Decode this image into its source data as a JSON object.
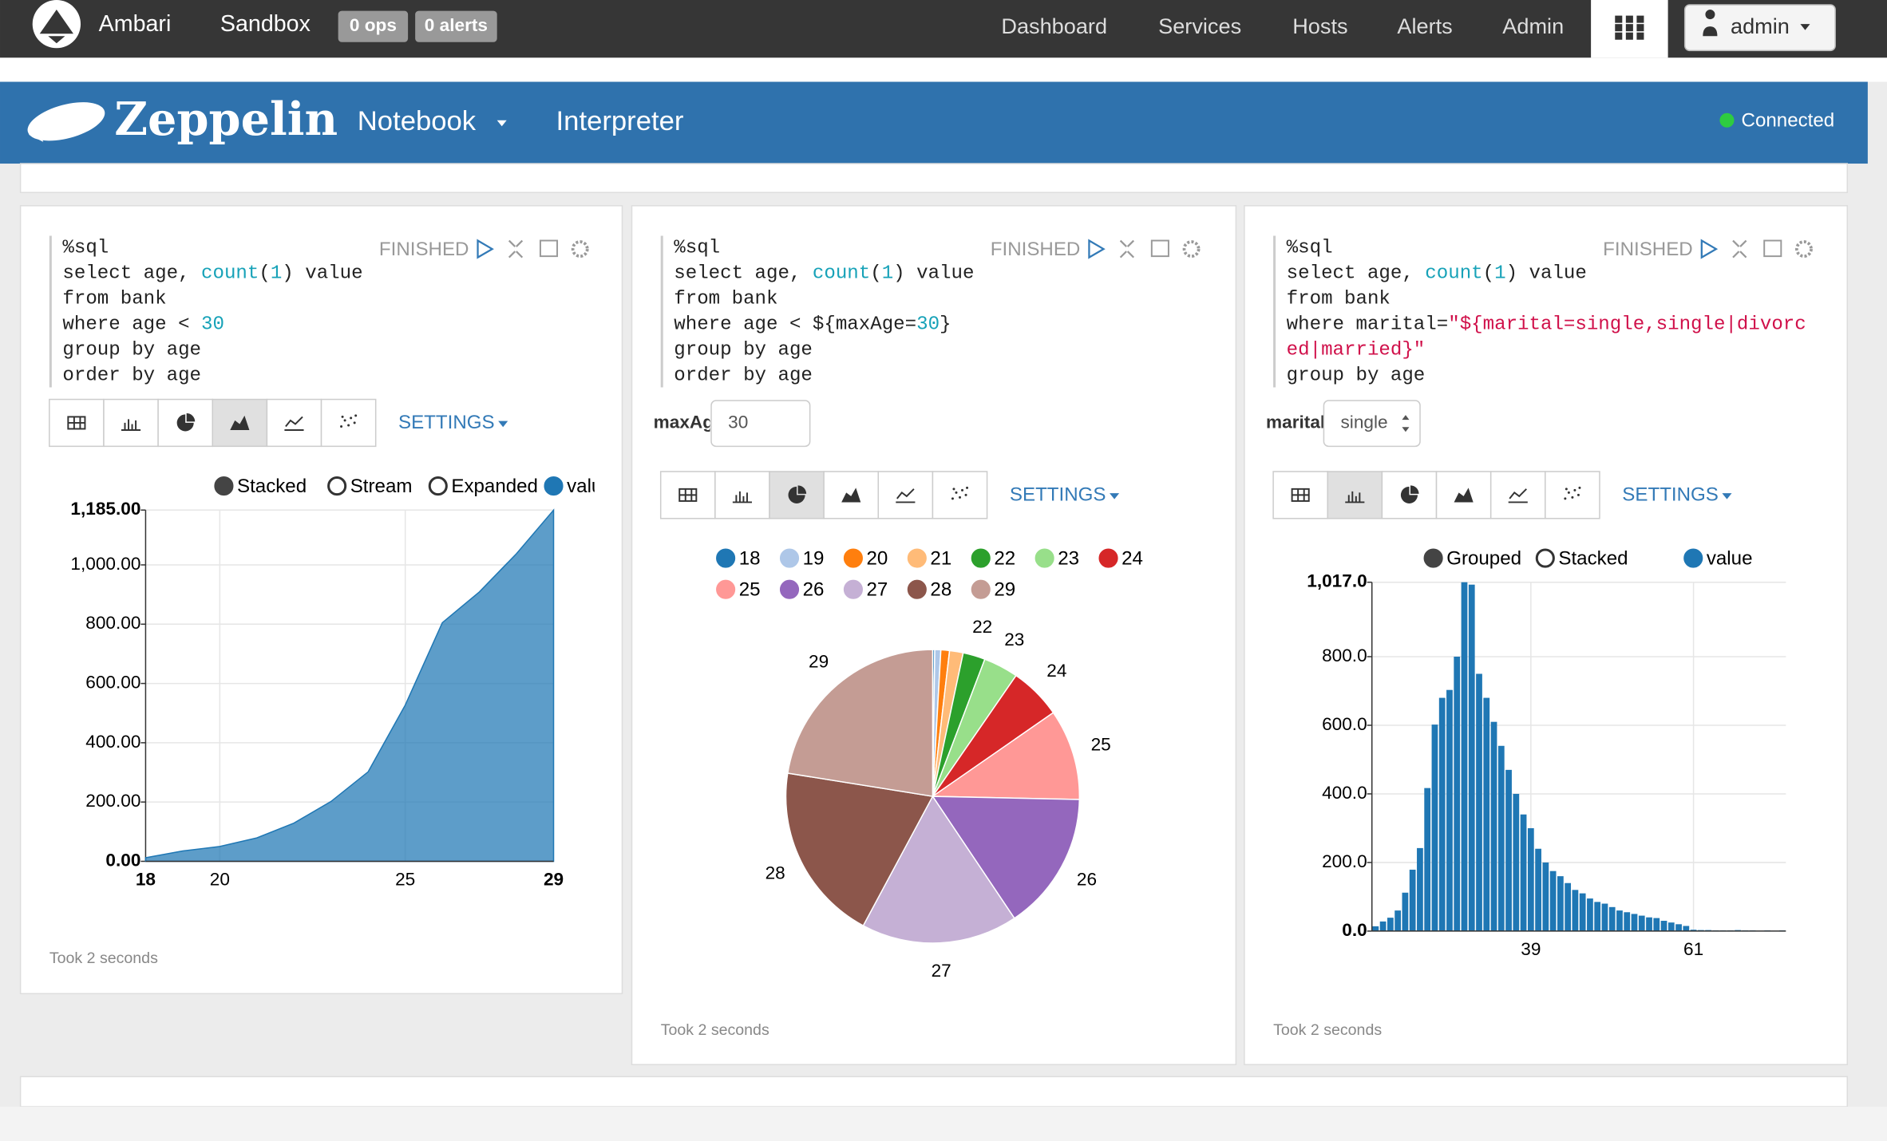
{
  "ambari": {
    "brand": "Ambari",
    "cluster": "Sandbox",
    "ops": "0 ops",
    "alerts": "0 alerts",
    "menu": [
      "Dashboard",
      "Services",
      "Hosts",
      "Alerts",
      "Admin"
    ],
    "user": "admin"
  },
  "zeppelin": {
    "brand": "Zeppelin",
    "menu": [
      "Notebook",
      "Interpreter"
    ],
    "status": "Connected"
  },
  "paragraphs": [
    {
      "code": [
        "%sql",
        "select age, count(1) value",
        "from bank",
        "where age < 30",
        "group by age",
        "order by age"
      ],
      "status": "FINISHED",
      "settings": "SETTINGS",
      "footer": "Took 2 seconds"
    },
    {
      "code": [
        "%sql",
        "select age, count(1) value",
        "from bank",
        "where age < ${maxAge=30}",
        "group by age",
        "order by age"
      ],
      "status": "FINISHED",
      "settings": "SETTINGS",
      "footer": "Took 2 seconds",
      "param": {
        "label": "maxAge",
        "value": "30"
      }
    },
    {
      "code": [
        "%sql",
        "select age, count(1) value",
        "from bank",
        "where marital=\"${marital=single,single|divorc",
        "ed|married}\"",
        "group by age"
      ],
      "status": "FINISHED",
      "settings": "SETTINGS",
      "footer": "Took 2 seconds",
      "param": {
        "label": "marital",
        "value": "single"
      }
    }
  ],
  "chart_data": [
    {
      "type": "area",
      "x": [
        18,
        19,
        20,
        21,
        22,
        23,
        24,
        25,
        26,
        27,
        28,
        29
      ],
      "series": [
        {
          "name": "value",
          "color": "#1f77b4",
          "values": [
            12,
            35,
            50,
            79,
            129,
            202,
            302,
            527,
            805,
            909,
            1038,
            1185
          ]
        }
      ],
      "legend_options": [
        "Stacked",
        "Stream",
        "Expanded"
      ],
      "xlim": [
        18,
        29
      ],
      "xticks": [
        18,
        20,
        25,
        29
      ],
      "ylim": [
        0,
        1185
      ],
      "yticks": [
        {
          "value": 0,
          "label": "0.00"
        },
        {
          "value": 200,
          "label": "200.00"
        },
        {
          "value": 400,
          "label": "400.00"
        },
        {
          "value": 600,
          "label": "600.00"
        },
        {
          "value": 800,
          "label": "800.00"
        },
        {
          "value": 1000,
          "label": "1,000.00"
        },
        {
          "value": 1185,
          "label": "1,185.00"
        }
      ],
      "grid": true
    },
    {
      "type": "pie",
      "categories": [
        "18",
        "19",
        "20",
        "21",
        "22",
        "23",
        "24",
        "25",
        "26",
        "27",
        "28",
        "29"
      ],
      "values": [
        12,
        35,
        50,
        79,
        129,
        202,
        302,
        527,
        805,
        909,
        1038,
        1185
      ],
      "colors": [
        "#1f77b4",
        "#aec7e8",
        "#ff7f0e",
        "#ffbb78",
        "#2ca02c",
        "#98df8a",
        "#d62728",
        "#ff9896",
        "#9467bd",
        "#c5b0d5",
        "#8c564b",
        "#c49c94"
      ]
    },
    {
      "type": "bar",
      "x": [
        18,
        19,
        20,
        21,
        22,
        23,
        24,
        25,
        26,
        27,
        28,
        29,
        30,
        31,
        32,
        33,
        34,
        35,
        36,
        37,
        38,
        39,
        40,
        41,
        42,
        43,
        44,
        45,
        46,
        47,
        48,
        49,
        50,
        51,
        52,
        53,
        54,
        55,
        56,
        57,
        58,
        59,
        60,
        61,
        62,
        63,
        64,
        65,
        66,
        67,
        68,
        69,
        70,
        71,
        72,
        73
      ],
      "series": [
        {
          "name": "value",
          "color": "#1f77b4",
          "values": [
            14,
            28,
            39,
            60,
            112,
            179,
            242,
            417,
            602,
            680,
            703,
            800,
            1017,
            1010,
            750,
            680,
            610,
            540,
            470,
            400,
            340,
            300,
            240,
            200,
            175,
            160,
            140,
            120,
            110,
            95,
            85,
            80,
            70,
            60,
            55,
            50,
            45,
            40,
            38,
            30,
            25,
            20,
            15,
            4,
            3,
            3,
            2,
            2,
            2,
            3,
            2,
            2,
            1,
            2,
            1,
            2
          ]
        }
      ],
      "legend_options": [
        "Grouped",
        "Stacked"
      ],
      "xlim": [
        17.5,
        73.5
      ],
      "xticks": [
        39,
        61
      ],
      "ylim": [
        0,
        1017
      ],
      "yticks": [
        {
          "value": 0,
          "label": "0.0"
        },
        {
          "value": 200,
          "label": "200.0"
        },
        {
          "value": 400,
          "label": "400.0"
        },
        {
          "value": 600,
          "label": "600.0"
        },
        {
          "value": 800,
          "label": "800.0"
        },
        {
          "value": 1017,
          "label": "1,017.0"
        }
      ],
      "grid": true
    }
  ]
}
